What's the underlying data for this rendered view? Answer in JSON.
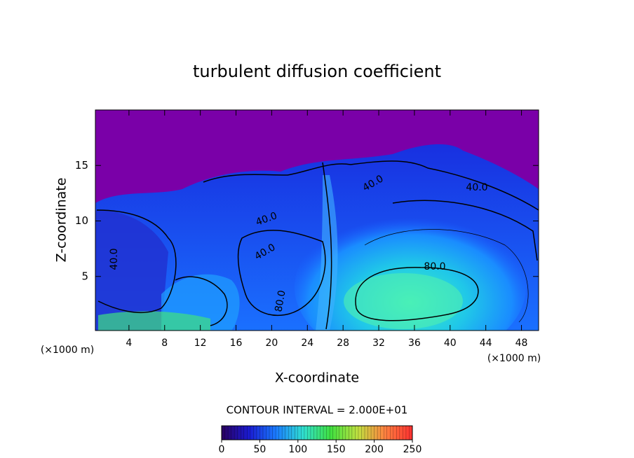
{
  "chart_data": {
    "type": "contour",
    "title": "turbulent diffusion coefficient",
    "x_label": "X-coordinate",
    "y_label": "Z-coordinate",
    "x_unit_left": "(×1000 m)",
    "x_unit_right": "(×1000 m)",
    "xlim": [
      0,
      50
    ],
    "xticks": [
      4,
      8,
      12,
      16,
      20,
      24,
      28,
      32,
      36,
      40,
      44,
      48
    ],
    "ylim": [
      0,
      20
    ],
    "yticks": [
      5,
      10,
      15
    ],
    "contour_interval_text": "CONTOUR INTERVAL = 2.000E+01",
    "contour_labels": [
      {
        "value": 40,
        "label": "40.0"
      },
      {
        "value": 40,
        "label": "40.0"
      },
      {
        "value": 40,
        "label": "40.0"
      },
      {
        "value": 80,
        "label": "80.0"
      },
      {
        "value": 40,
        "label": "40.0"
      },
      {
        "value": 40,
        "label": "40.0"
      },
      {
        "value": 80,
        "label": "80.0"
      }
    ],
    "colorbar_lim": [
      0,
      250
    ],
    "colorbar_ticks": [
      0,
      50,
      100,
      150,
      200,
      250
    ],
    "colormap": [
      "#2a0060",
      "#1a1ad0",
      "#1a7cff",
      "#30e0d0",
      "#40e040",
      "#c0e040",
      "#ff8040",
      "#ff3030"
    ]
  }
}
